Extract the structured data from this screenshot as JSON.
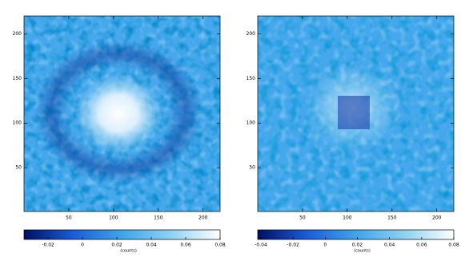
{
  "chart_data": [
    {
      "type": "image",
      "xlim": [
        0,
        219
      ],
      "ylim": [
        1,
        220
      ],
      "xticks": [
        50,
        100,
        150,
        200
      ],
      "yticks": [
        50,
        100,
        150,
        200
      ],
      "colorbar": {
        "label": "(counts)",
        "lim": [
          -0.034,
          0.08
        ],
        "ticks": [
          -0.02,
          0,
          0.02,
          0.04,
          0.06,
          0.08
        ],
        "colors": [
          "#001060",
          "#1a5cd8",
          "#3fa4ea",
          "#8fd2f2",
          "#ffffff"
        ]
      }
    },
    {
      "type": "image",
      "xlim": [
        0,
        219
      ],
      "ylim": [
        1,
        220
      ],
      "xticks": [
        50,
        100,
        150,
        200
      ],
      "yticks": [
        50,
        100,
        150,
        200
      ],
      "colorbar": {
        "label": "(counts)",
        "lim": [
          -0.042,
          0.08
        ],
        "ticks": [
          -0.04,
          -0.02,
          0,
          0.02,
          0.04,
          0.06,
          0.08
        ],
        "colors": [
          "#001060",
          "#1a5cd8",
          "#3fa4ea",
          "#8fd2f2",
          "#ffffff"
        ]
      }
    }
  ]
}
